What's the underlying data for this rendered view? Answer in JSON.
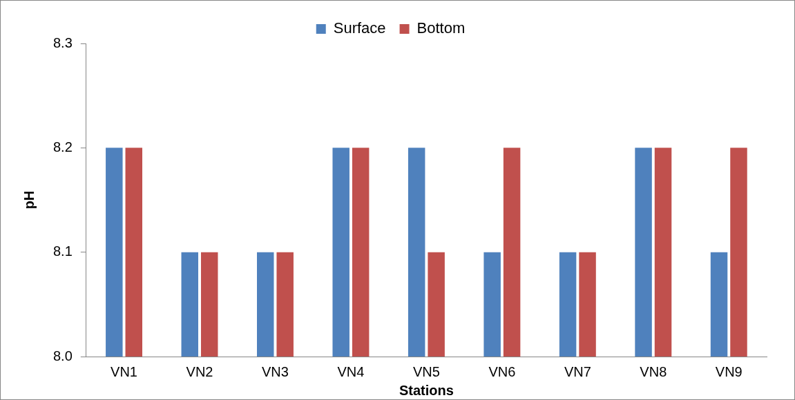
{
  "chart_data": {
    "type": "bar",
    "xlabel": "Stations",
    "ylabel": "pH",
    "categories": [
      "VN1",
      "VN2",
      "VN3",
      "VN4",
      "VN5",
      "VN6",
      "VN7",
      "VN8",
      "VN9"
    ],
    "series": [
      {
        "name": "Surface",
        "color": "#4f81bd",
        "values": [
          8.2,
          8.1,
          8.1,
          8.2,
          8.2,
          8.1,
          8.1,
          8.2,
          8.1
        ]
      },
      {
        "name": "Bottom",
        "color": "#c0504d",
        "values": [
          8.2,
          8.1,
          8.1,
          8.2,
          8.1,
          8.2,
          8.1,
          8.2,
          8.2
        ]
      }
    ],
    "ylim": [
      8.0,
      8.3
    ],
    "yticks": [
      {
        "value": 8.0,
        "label": "8.0"
      },
      {
        "value": 8.1,
        "label": "8.1"
      },
      {
        "value": 8.2,
        "label": "8.2"
      },
      {
        "value": 8.3,
        "label": "8.3"
      }
    ],
    "legend": "top"
  }
}
